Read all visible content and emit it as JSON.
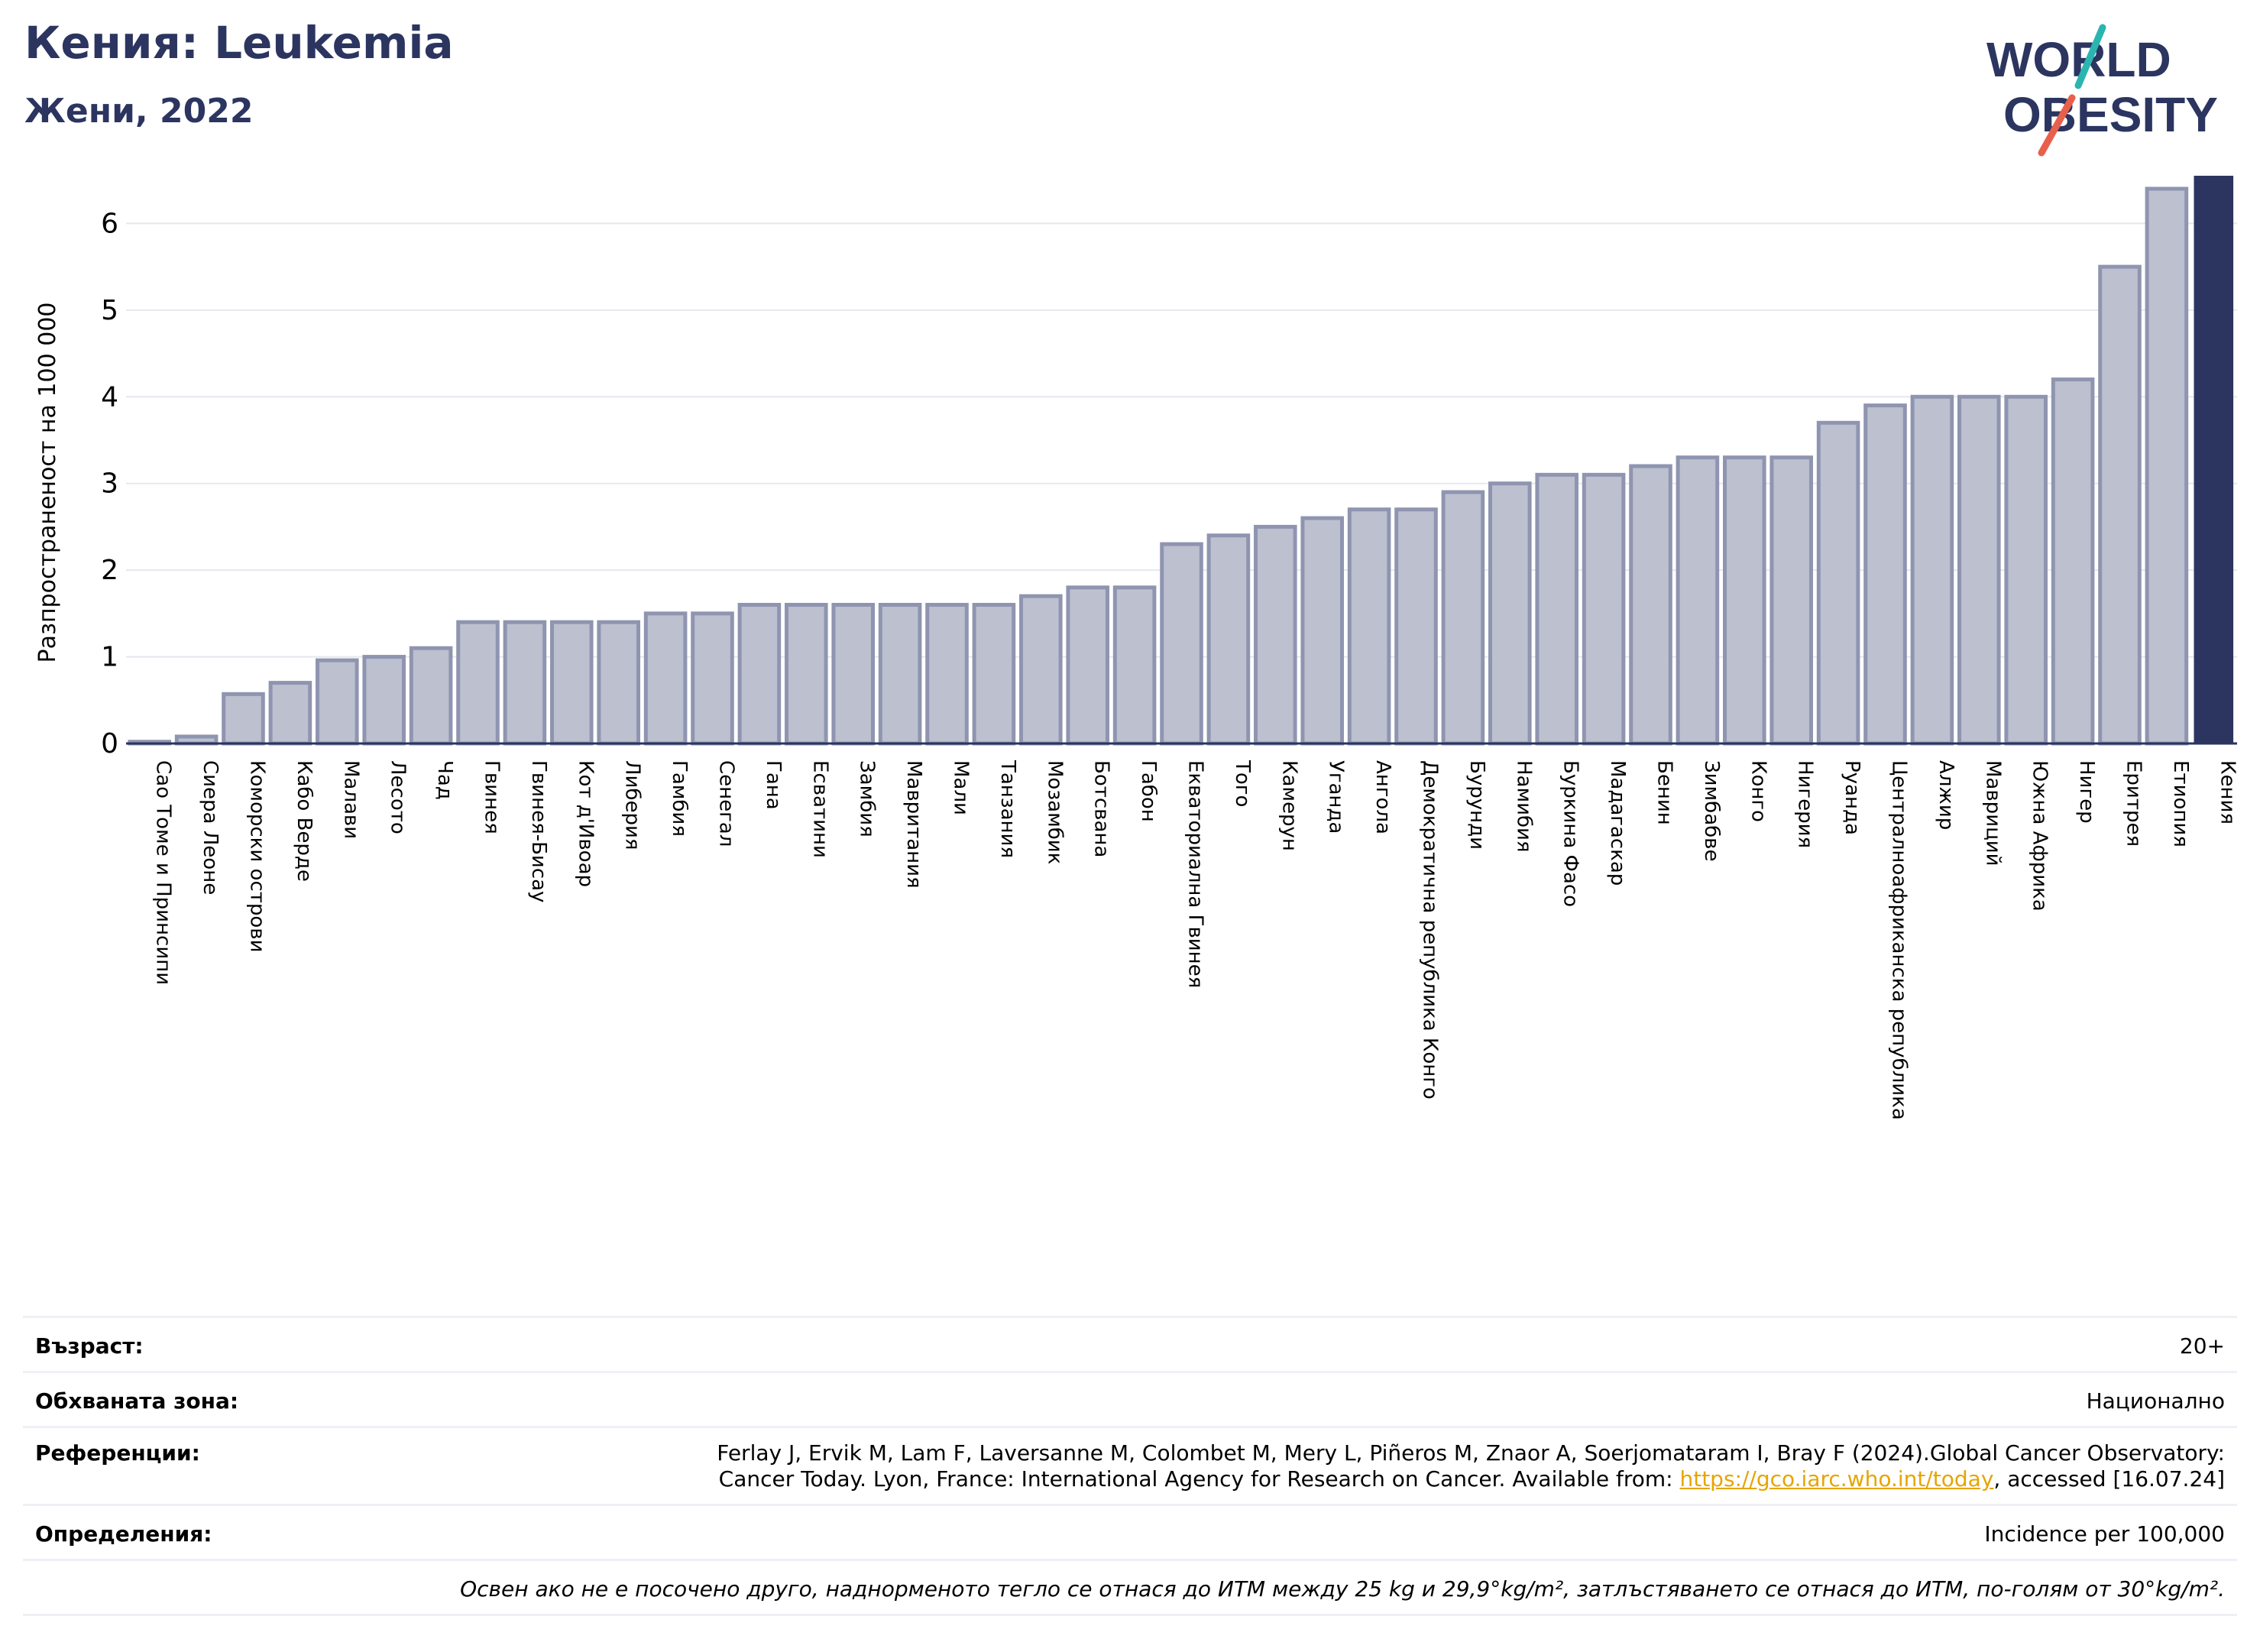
{
  "header": {
    "title": "Кения: Leukemia",
    "subtitle": "Жени, 2022"
  },
  "logo": {
    "line1": "WORLD",
    "line2": "OBESITY",
    "colors": {
      "text": "#2b3560",
      "slash_top": "#2bb5b0",
      "slash_bottom": "#e8604c"
    }
  },
  "colors": {
    "bar_fill": "#bcc0cf",
    "bar_stroke": "#8f95b0",
    "highlight": "#2b3560",
    "grid": "#e6e8ee",
    "axis": "#2b3560"
  },
  "chart_data": {
    "type": "bar",
    "title": "",
    "xlabel": "",
    "ylabel": "Разпространеност  на 100 000",
    "ylim": [
      0,
      6.55
    ],
    "yticks": [
      0,
      1,
      2,
      3,
      4,
      5,
      6
    ],
    "grid": true,
    "categories": [
      "Сао Томе и Принсипи",
      "Сиера Леоне",
      "Коморски острови",
      "Кабо Верде",
      "Малави",
      "Лесото",
      "Чад",
      "Гвинея",
      "Гвинея-Бисау",
      "Кот д'Ивоар",
      "Либерия",
      "Гамбия",
      "Сенегал",
      "Гана",
      "Есватини",
      "Замбия",
      "Мавритания",
      "Мали",
      "Танзания",
      "Мозамбик",
      "Ботсвана",
      "Габон",
      "Екваториална Гвинея",
      "Того",
      "Камерун",
      "Уганда",
      "Ангола",
      "Демократична република Конго",
      "Бурунди",
      "Намибия",
      "Буркина Фасо",
      "Мадагаскар",
      "Бенин",
      "Зимбабве",
      "Конго",
      "Нигерия",
      "Руанда",
      "Централноафриканска република",
      "Алжир",
      "Мавриций",
      "Южна Африка",
      "Нигер",
      "Еритрея",
      "Етиопия",
      "Кения"
    ],
    "values": [
      0.02,
      0.08,
      0.57,
      0.7,
      0.96,
      1.0,
      1.1,
      1.4,
      1.4,
      1.4,
      1.4,
      1.5,
      1.5,
      1.6,
      1.6,
      1.6,
      1.6,
      1.6,
      1.6,
      1.7,
      1.8,
      1.8,
      2.3,
      2.4,
      2.5,
      2.6,
      2.7,
      2.7,
      2.9,
      3.0,
      3.1,
      3.1,
      3.2,
      3.3,
      3.3,
      3.3,
      3.7,
      3.9,
      4.0,
      4.0,
      4.0,
      4.2,
      5.5,
      6.4,
      6.55
    ],
    "highlight": "Кения"
  },
  "meta": {
    "age_label": "Възраст:",
    "age_value": "20+",
    "coverage_label": "Обхваната зона:",
    "coverage_value": "Национално",
    "refs_label": "Референции:",
    "refs_line1": "Ferlay J, Ervik M, Lam F, Laversanne M, Colombet M, Mery L, Piñeros M, Znaor A, Soerjomataram I, Bray F (2024).Global Cancer Observatory:",
    "refs_line2_pre": "Cancer Today. Lyon, France: International Agency for Research on Cancer. Available from: ",
    "refs_link": "https://gco.iarc.who.int/today",
    "refs_line2_post": ", accessed [16.07.24]",
    "definitions_label": "Определения:",
    "definitions_value": "Incidence per 100,000",
    "note": "Освен ако не е посочено друго, наднорменото тегло се отнася до ИТМ между 25 kg и 29,9°kg/m², затлъстяването се отнася до ИТМ, по-голям от 30°kg/m²."
  }
}
